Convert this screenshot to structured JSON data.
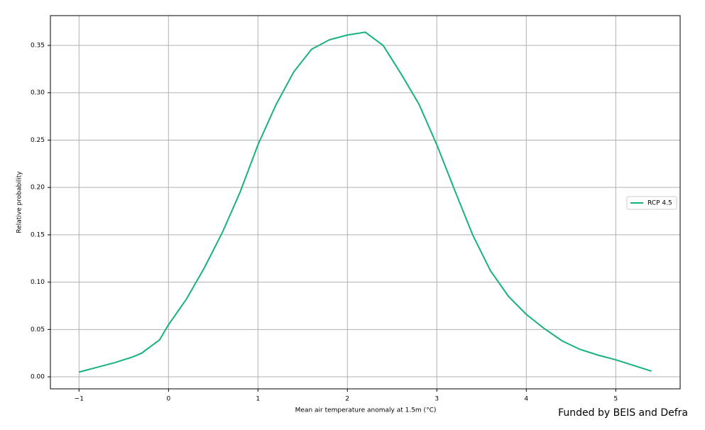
{
  "chart_data": {
    "type": "line",
    "xlabel": "Mean air temperature anomaly at 1.5m (°C)",
    "ylabel": "Relative probability",
    "x": [
      -1,
      -0.8,
      -0.6,
      -0.4,
      -0.3,
      -0.2,
      -0.1,
      0,
      0.2,
      0.4,
      0.6,
      0.8,
      1.0,
      1.2,
      1.4,
      1.6,
      1.8,
      2.0,
      2.2,
      2.4,
      2.6,
      2.8,
      3.0,
      3.2,
      3.4,
      3.6,
      3.8,
      4.0,
      4.2,
      4.4,
      4.6,
      4.8,
      5.0,
      5.2,
      5.4
    ],
    "series": [
      {
        "name": "RCP 4.5",
        "color": "#17b27a",
        "values": [
          0.005,
          0.01,
          0.015,
          0.021,
          0.025,
          0.032,
          0.039,
          0.055,
          0.082,
          0.115,
          0.152,
          0.195,
          0.245,
          0.287,
          0.322,
          0.346,
          0.356,
          0.361,
          0.364,
          0.35,
          0.32,
          0.288,
          0.245,
          0.197,
          0.15,
          0.112,
          0.085,
          0.066,
          0.051,
          0.038,
          0.029,
          0.023,
          0.018,
          0.012,
          0.006
        ]
      }
    ],
    "xlim": [
      -1.32,
      5.72
    ],
    "xticks": [
      {
        "value": -1,
        "label": "−1"
      },
      0,
      1,
      2,
      3,
      4,
      5
    ],
    "ylim": [
      -0.0127,
      0.3815
    ],
    "yticks": [
      {
        "value": 0,
        "label": "0.00"
      },
      {
        "value": 0.05,
        "label": "0.05"
      },
      {
        "value": 0.1,
        "label": "0.10"
      },
      {
        "value": 0.15,
        "label": "0.15"
      },
      {
        "value": 0.2,
        "label": "0.20"
      },
      {
        "value": 0.25,
        "label": "0.25"
      },
      {
        "value": 0.3,
        "label": "0.30"
      },
      {
        "value": 0.35,
        "label": "0.35"
      }
    ],
    "grid": true,
    "legend": "center right"
  },
  "footer": "Funded by BEIS and Defra"
}
